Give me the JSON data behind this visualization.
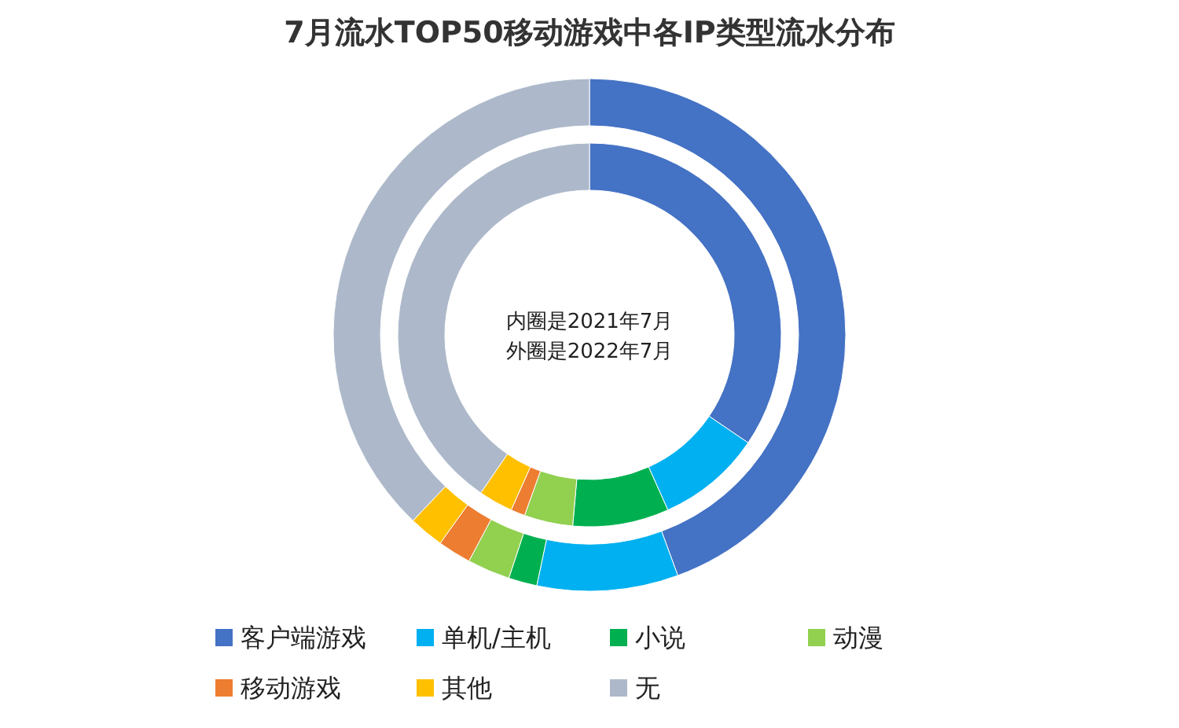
{
  "chart_data": {
    "type": "donut",
    "title": "7月流水TOP50移动游戏中各IP类型流水分布",
    "categories": [
      "客户端游戏",
      "单机/主机",
      "小说",
      "动漫",
      "移动游戏",
      "其他",
      "无"
    ],
    "colors": [
      "#4472c4",
      "#00b0f0",
      "#00b050",
      "#92d050",
      "#ed7d31",
      "#ffc000",
      "#adb9ca"
    ],
    "series": [
      {
        "values": [
          34.5,
          8.8,
          8.1,
          4.1,
          1.2,
          2.9,
          40.4
        ]
      },
      {
        "values": [
          44.4,
          8.9,
          1.8,
          2.7,
          2.1,
          2.2,
          37.9
        ]
      }
    ],
    "annotations": [
      "内圈是2021年7月",
      "外圈是2022年7月"
    ],
    "legend": "bottom"
  }
}
